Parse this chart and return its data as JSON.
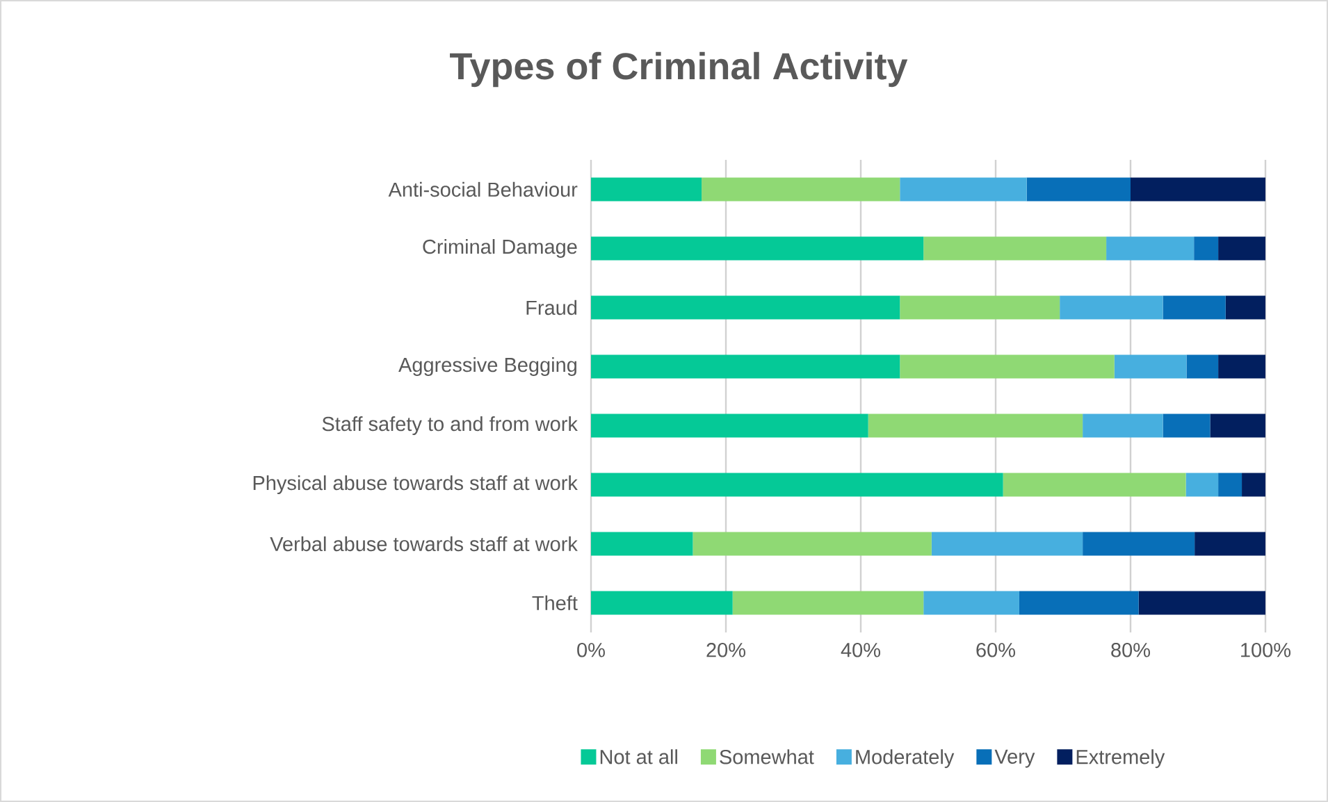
{
  "chart_data": {
    "type": "bar",
    "title": "Types of Criminal Activity",
    "orientation": "horizontal",
    "stacked": true,
    "categories": [
      "Anti-social Behaviour",
      "Criminal Damage",
      "Fraud",
      "Aggressive Begging",
      "Staff safety to and from work",
      "Physical abuse towards staff at work",
      "Verbal abuse towards staff at work",
      "Theft"
    ],
    "series": [
      {
        "name": "Not at all",
        "color": "#05c997",
        "values": [
          16.4,
          49.3,
          45.8,
          45.8,
          41.1,
          61.1,
          15.1,
          21.0
        ]
      },
      {
        "name": "Somewhat",
        "color": "#8fd974",
        "values": [
          29.4,
          27.1,
          23.7,
          31.8,
          31.8,
          27.1,
          35.4,
          28.3
        ]
      },
      {
        "name": "Moderately",
        "color": "#47afdf",
        "values": [
          18.8,
          13.0,
          15.3,
          10.7,
          11.9,
          4.8,
          22.4,
          14.2
        ]
      },
      {
        "name": "Very",
        "color": "#086fb8",
        "values": [
          15.4,
          3.6,
          9.3,
          4.7,
          7.0,
          3.5,
          16.6,
          17.7
        ]
      },
      {
        "name": "Extremely",
        "color": "#021f5f",
        "values": [
          20.0,
          7.0,
          5.9,
          7.0,
          8.2,
          3.5,
          10.5,
          18.8
        ]
      }
    ],
    "xlim": [
      0,
      100
    ],
    "xticks": [
      {
        "value": 0,
        "label": "0%"
      },
      {
        "value": 20,
        "label": "20%"
      },
      {
        "value": 40,
        "label": "40%"
      },
      {
        "value": 60,
        "label": "60%"
      },
      {
        "value": 80,
        "label": "80%"
      },
      {
        "value": 100,
        "label": "100%"
      }
    ],
    "grid": "x",
    "legend": "bottom"
  }
}
